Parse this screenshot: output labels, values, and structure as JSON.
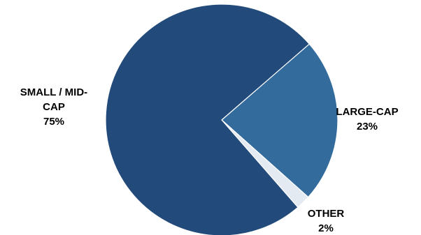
{
  "chart_data": {
    "type": "pie",
    "categories": [
      "LARGE-CAP",
      "OTHER",
      "SMALL / MID-CAP"
    ],
    "values": [
      23,
      2,
      75
    ],
    "value_labels": [
      "23%",
      "2%",
      "75%"
    ],
    "label_lines": [
      [
        "LARGE-CAP"
      ],
      [
        "OTHER"
      ],
      [
        "SMALL / MID-",
        "CAP"
      ]
    ],
    "colors": [
      "#336b9d",
      "#e3eaf2",
      "#224a7a"
    ],
    "start": "pie begins at about 1 o'clock, slices run clockwise",
    "legend": "none",
    "title": ""
  }
}
